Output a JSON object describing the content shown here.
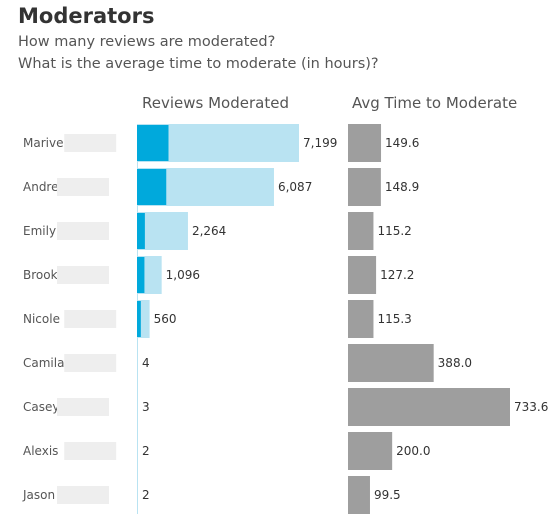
{
  "title": "Moderators",
  "subtitle_1": "How many reviews are moderated?",
  "subtitle_2": "What is the average time to moderate (in hours)?",
  "colors": {
    "reviews_total": "#b9e3f2",
    "reviews_highlight": "#00a9dc",
    "avg_time": "#9e9e9e",
    "name_blur": "#eeeeee"
  },
  "chart_data": {
    "type": "bar",
    "orientation": "horizontal",
    "categories": [
      "Marive",
      "Andre",
      "Emily",
      "Brook",
      "Nicole",
      "Camila",
      "Casey",
      "Alexis",
      "Jason"
    ],
    "panels": [
      {
        "title": "Reviews Moderated",
        "values": [
          7199,
          6087,
          2264,
          1096,
          560,
          4,
          3,
          2,
          2
        ],
        "value_labels": [
          "7,199",
          "6,087",
          "2,264",
          "1,096",
          "560",
          "4",
          "3",
          "2",
          "2"
        ],
        "highlight_values": [
          1400,
          1300,
          350,
          330,
          170,
          0,
          0,
          0,
          0
        ],
        "xlim": [
          0,
          7199
        ]
      },
      {
        "title": "Avg Time to Moderate",
        "values": [
          149.6,
          148.9,
          115.2,
          127.2,
          115.3,
          388.0,
          733.6,
          200.0,
          99.5
        ],
        "value_labels": [
          "149.6",
          "148.9",
          "115.2",
          "127.2",
          "115.3",
          "388.0",
          "733.6",
          "200.0",
          "99.5"
        ],
        "xlim": [
          0,
          733.6
        ]
      }
    ]
  }
}
